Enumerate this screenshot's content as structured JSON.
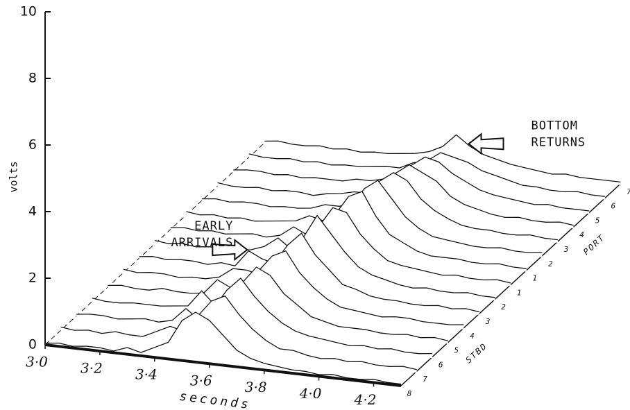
{
  "chart_data": {
    "type": "waterfall",
    "y_label": "volts",
    "x_label": "seconds",
    "ylim": [
      0,
      10
    ],
    "yticks": [
      0,
      2,
      4,
      6,
      8,
      10
    ],
    "xlim": [
      3.0,
      4.3
    ],
    "xticks": [
      {
        "value": 3.0,
        "label": "3·0"
      },
      {
        "value": 3.2,
        "label": "3·2"
      },
      {
        "value": 3.4,
        "label": "3·4"
      },
      {
        "value": 3.6,
        "label": "3·6"
      },
      {
        "value": 3.8,
        "label": "3·8"
      },
      {
        "value": 4.0,
        "label": "4·0"
      },
      {
        "value": 4.2,
        "label": "4·2"
      }
    ],
    "color": "#111111",
    "depth_groups": [
      {
        "label": "STBD",
        "first": 0,
        "last": 7
      },
      {
        "label": "PORT",
        "first": 8,
        "last": 14
      }
    ],
    "annotations": [
      {
        "lines": [
          "EARLY",
          "ARRIVALS"
        ],
        "series": 6,
        "x": 3.42
      },
      {
        "lines": [
          "BOTTOM",
          "RETURNS"
        ],
        "series": 14,
        "x": 3.72
      }
    ],
    "x": [
      3.0,
      3.05,
      3.1,
      3.15,
      3.2,
      3.25,
      3.3,
      3.35,
      3.4,
      3.45,
      3.5,
      3.55,
      3.6,
      3.65,
      3.7,
      3.75,
      3.8,
      3.85,
      3.9,
      3.95,
      4.0,
      4.05,
      4.1,
      4.15,
      4.2,
      4.25,
      4.3
    ],
    "series": [
      {
        "name": "8",
        "values": [
          0.05,
          0.1,
          0.05,
          0.1,
          0.1,
          0.05,
          0.2,
          0.1,
          0.3,
          0.5,
          1.2,
          1.5,
          1.3,
          0.9,
          0.5,
          0.3,
          0.2,
          0.15,
          0.1,
          0.1,
          0.05,
          0.1,
          0.05,
          0.05,
          0.1,
          0.05,
          0.05
        ]
      },
      {
        "name": "7",
        "values": [
          0.1,
          0.05,
          0.1,
          0.05,
          0.15,
          0.1,
          0.1,
          0.3,
          0.5,
          0.4,
          0.9,
          1.4,
          1.6,
          1.1,
          0.7,
          0.4,
          0.2,
          0.2,
          0.1,
          0.05,
          0.1,
          0.05,
          0.1,
          0.05,
          0.05,
          0.1,
          0.05
        ]
      },
      {
        "name": "6",
        "values": [
          0.05,
          0.1,
          0.1,
          0.05,
          0.1,
          0.15,
          0.1,
          0.2,
          0.6,
          0.3,
          0.7,
          1.3,
          1.7,
          1.2,
          0.8,
          0.5,
          0.3,
          0.2,
          0.15,
          0.1,
          0.05,
          0.1,
          0.05,
          0.1,
          0.05,
          0.05,
          0.1
        ]
      },
      {
        "name": "5",
        "values": [
          0.1,
          0.05,
          0.05,
          0.1,
          0.1,
          0.1,
          0.15,
          0.2,
          0.7,
          0.3,
          0.5,
          1.1,
          1.6,
          1.4,
          0.9,
          0.6,
          0.3,
          0.2,
          0.1,
          0.1,
          0.1,
          0.05,
          0.05,
          0.1,
          0.05,
          0.1,
          0.05
        ]
      },
      {
        "name": "4",
        "values": [
          0.05,
          0.1,
          0.05,
          0.05,
          0.15,
          0.1,
          0.1,
          0.15,
          0.6,
          0.4,
          0.4,
          1.0,
          1.5,
          1.7,
          1.1,
          0.7,
          0.4,
          0.2,
          0.15,
          0.1,
          0.05,
          0.1,
          0.1,
          0.05,
          0.05,
          0.05,
          0.1
        ]
      },
      {
        "name": "3",
        "values": [
          0.1,
          0.05,
          0.1,
          0.1,
          0.05,
          0.1,
          0.1,
          0.2,
          0.5,
          0.5,
          0.4,
          0.8,
          1.4,
          1.8,
          1.2,
          0.8,
          0.4,
          0.3,
          0.15,
          0.1,
          0.1,
          0.05,
          0.05,
          0.1,
          0.05,
          0.1,
          0.05
        ]
      },
      {
        "name": "2",
        "values": [
          0.05,
          0.1,
          0.05,
          0.1,
          0.1,
          0.05,
          0.15,
          0.1,
          0.6,
          0.4,
          0.3,
          0.7,
          1.2,
          1.9,
          1.4,
          0.9,
          0.5,
          0.3,
          0.2,
          0.1,
          0.05,
          0.1,
          0.05,
          0.05,
          0.1,
          0.05,
          0.05
        ]
      },
      {
        "name": "1",
        "values": [
          0.1,
          0.05,
          0.1,
          0.05,
          0.1,
          0.1,
          0.1,
          0.15,
          0.3,
          0.6,
          0.3,
          0.6,
          1.1,
          1.7,
          1.6,
          1.0,
          0.6,
          0.3,
          0.2,
          0.15,
          0.1,
          0.05,
          0.1,
          0.05,
          0.05,
          0.1,
          0.05
        ]
      },
      {
        "name": "1",
        "values": [
          0.05,
          0.1,
          0.05,
          0.1,
          0.05,
          0.1,
          0.15,
          0.1,
          0.2,
          0.5,
          0.3,
          0.5,
          1.0,
          1.6,
          1.8,
          1.1,
          0.6,
          0.4,
          0.2,
          0.1,
          0.1,
          0.1,
          0.05,
          0.05,
          0.1,
          0.05,
          0.05
        ]
      },
      {
        "name": "2",
        "values": [
          0.1,
          0.05,
          0.1,
          0.05,
          0.1,
          0.05,
          0.1,
          0.15,
          0.2,
          0.4,
          0.3,
          0.4,
          0.8,
          1.4,
          1.7,
          1.2,
          0.7,
          0.4,
          0.2,
          0.15,
          0.1,
          0.05,
          0.05,
          0.1,
          0.05,
          0.05,
          0.1
        ]
      },
      {
        "name": "3",
        "values": [
          0.05,
          0.1,
          0.05,
          0.1,
          0.1,
          0.05,
          0.1,
          0.1,
          0.15,
          0.3,
          0.3,
          0.4,
          0.7,
          1.2,
          1.5,
          1.3,
          0.8,
          0.5,
          0.3,
          0.15,
          0.1,
          0.1,
          0.05,
          0.05,
          0.1,
          0.05,
          0.05
        ]
      },
      {
        "name": "4",
        "values": [
          0.1,
          0.05,
          0.05,
          0.1,
          0.05,
          0.1,
          0.1,
          0.05,
          0.15,
          0.2,
          0.3,
          0.3,
          0.6,
          1.0,
          1.3,
          1.1,
          0.9,
          0.5,
          0.3,
          0.2,
          0.1,
          0.05,
          0.1,
          0.05,
          0.05,
          0.1,
          0.05
        ]
      },
      {
        "name": "5",
        "values": [
          0.05,
          0.1,
          0.1,
          0.05,
          0.1,
          0.05,
          0.1,
          0.1,
          0.1,
          0.2,
          0.2,
          0.3,
          0.5,
          0.8,
          1.1,
          1.0,
          0.7,
          0.5,
          0.3,
          0.2,
          0.15,
          0.1,
          0.05,
          0.1,
          0.05,
          0.05,
          0.05
        ]
      },
      {
        "name": "6",
        "values": [
          0.1,
          0.05,
          0.05,
          0.1,
          0.05,
          0.1,
          0.05,
          0.1,
          0.1,
          0.15,
          0.2,
          0.2,
          0.4,
          0.5,
          0.8,
          0.7,
          0.6,
          0.4,
          0.3,
          0.2,
          0.1,
          0.1,
          0.05,
          0.05,
          0.1,
          0.05,
          0.05
        ]
      },
      {
        "name": "7",
        "values": [
          0.05,
          0.1,
          0.05,
          0.05,
          0.1,
          0.05,
          0.1,
          0.05,
          0.1,
          0.1,
          0.15,
          0.2,
          0.3,
          0.5,
          0.9,
          0.6,
          0.4,
          0.3,
          0.2,
          0.15,
          0.1,
          0.05,
          0.1,
          0.05,
          0.05,
          0.05,
          0.05
        ]
      }
    ]
  }
}
